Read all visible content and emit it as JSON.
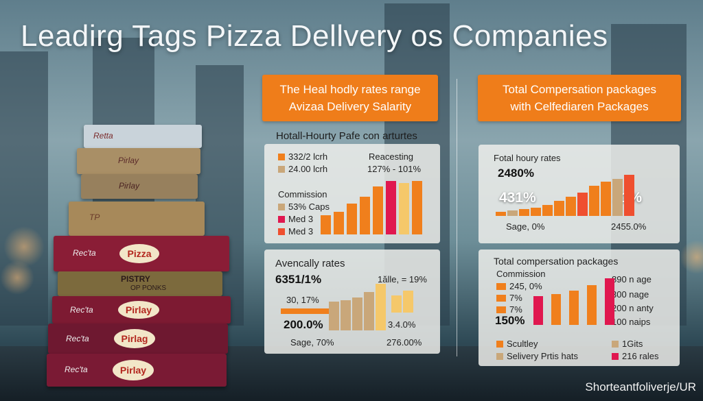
{
  "title": "Leadirg Tags Pizza Dellvery os Companies",
  "footer": "Shorteantfoliverje/UR",
  "boxes": {
    "b1": "Retta",
    "b2": "Pirlay",
    "b3": "Pirlay",
    "b4": "TP",
    "b5_left": "Rec'ta",
    "b5_badge": "Pizza",
    "b6_line1": "PISTRY",
    "b6_line2": "OP PONKS",
    "b7_left": "Rec'ta",
    "b7_badge": "Pirlay",
    "b8_left": "Rec'ta",
    "b8_badge": "Pirlag",
    "b9_left": "Rec'ta",
    "b9_badge": "Pirlay"
  },
  "left_header": {
    "line1": "The Heal hodly rates range",
    "line2": "Avizaa Delivery Salarity"
  },
  "right_header": {
    "line1": "Total Compersation packages",
    "line2": "with Celfediaren Packages"
  },
  "left_top": {
    "title": "Hotall-Hourty Pafe con arturtes",
    "legend1": "332/2 lcrh",
    "legend2": "24.00 lcrh",
    "commission": "Commission",
    "legend3": "53% Caps",
    "legend4": "Med 3",
    "legend5": "Med 3",
    "right_label1": "Reacesting",
    "right_label2": "127% - 101%"
  },
  "left_bottom": {
    "title": "Avencally rates",
    "stat1": "6351/1%",
    "stat2": "30, 17%",
    "stat3": "200.0%",
    "right_label": "1ălle, = 19%",
    "right_value": "3.4.0%",
    "sage": "Sage, 70%",
    "right_bottom": "276.00%"
  },
  "right_top": {
    "title": "Fotal houry rates",
    "stat1": "2480%",
    "stat2": "431%",
    "stat3": "21%",
    "sage": "Sage, 0%",
    "right_bottom": "2455.0%"
  },
  "right_bottom": {
    "title": "Total compersation packages",
    "commission": "Commission",
    "legend1": "245, 0%",
    "legend2": "7%",
    "legend3": "7%",
    "stat": "150%",
    "r1": "890 n age",
    "r2": "300 nage",
    "r3": "200 n anty",
    "r4": "100 naips",
    "leg_a": "Scultley",
    "leg_b": "Selivery Prtis hats",
    "leg_c": "1Gits",
    "leg_d": "216 rales"
  },
  "colors": {
    "orange": "#f07f1c",
    "tan": "#c9a77a",
    "red": "#ef4f2f",
    "crimson": "#e0174f",
    "yellow": "#f5c86a"
  },
  "chart_data": [
    {
      "type": "bar",
      "name": "left_top_chart",
      "values": [
        28,
        33,
        45,
        55,
        70,
        78,
        75,
        78
      ],
      "colors": [
        "orange",
        "orange",
        "orange",
        "orange",
        "orange",
        "crimson",
        "yellow",
        "orange"
      ]
    },
    {
      "type": "bar",
      "name": "left_bottom_chart_a",
      "values": [
        42,
        44,
        48,
        56,
        68
      ],
      "colors": [
        "tan",
        "tan",
        "tan",
        "tan",
        "yellow"
      ]
    },
    {
      "type": "bar",
      "name": "left_bottom_chart_b",
      "values": [
        25,
        32
      ],
      "colors": [
        "yellow",
        "yellow"
      ]
    },
    {
      "type": "bar",
      "name": "right_top_chart",
      "values": [
        6,
        8,
        10,
        12,
        16,
        22,
        28,
        34,
        44,
        50,
        54,
        60
      ],
      "colors": [
        "orange",
        "tan",
        "orange",
        "orange",
        "orange",
        "orange",
        "orange",
        "red",
        "orange",
        "orange",
        "tan",
        "red"
      ]
    },
    {
      "type": "bar",
      "name": "right_bottom_chart",
      "values": [
        42,
        45,
        50,
        58,
        68
      ],
      "colors": [
        "crimson",
        "orange",
        "orange",
        "orange",
        "crimson"
      ]
    }
  ]
}
